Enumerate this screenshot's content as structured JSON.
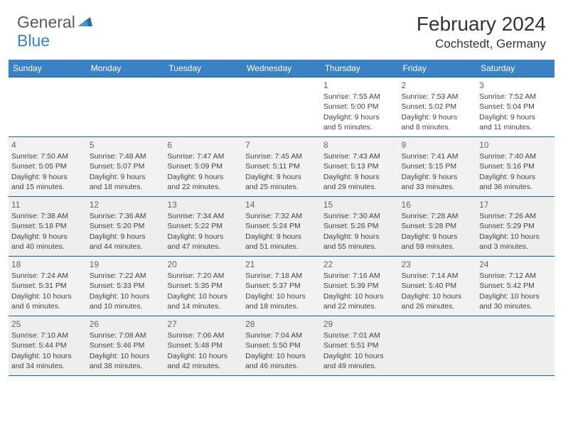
{
  "header": {
    "logo_main": "General",
    "logo_accent": "Blue",
    "logo_colors": {
      "main": "#5a5a5a",
      "accent": "#3b82c4"
    },
    "month_title": "February 2024",
    "location": "Cochstedt, Germany"
  },
  "calendar": {
    "type": "table",
    "header_bg": "#3b82c4",
    "header_fg": "#ffffff",
    "border_color": "#2b5a85",
    "alt_row_bg": "#eeeeee",
    "day_labels": [
      "Sunday",
      "Monday",
      "Tuesday",
      "Wednesday",
      "Thursday",
      "Friday",
      "Saturday"
    ],
    "weeks": [
      [
        null,
        null,
        null,
        null,
        {
          "n": "1",
          "sunrise": "Sunrise: 7:55 AM",
          "sunset": "Sunset: 5:00 PM",
          "d1": "Daylight: 9 hours",
          "d2": "and 5 minutes."
        },
        {
          "n": "2",
          "sunrise": "Sunrise: 7:53 AM",
          "sunset": "Sunset: 5:02 PM",
          "d1": "Daylight: 9 hours",
          "d2": "and 8 minutes."
        },
        {
          "n": "3",
          "sunrise": "Sunrise: 7:52 AM",
          "sunset": "Sunset: 5:04 PM",
          "d1": "Daylight: 9 hours",
          "d2": "and 11 minutes."
        }
      ],
      [
        {
          "n": "4",
          "sunrise": "Sunrise: 7:50 AM",
          "sunset": "Sunset: 5:05 PM",
          "d1": "Daylight: 9 hours",
          "d2": "and 15 minutes."
        },
        {
          "n": "5",
          "sunrise": "Sunrise: 7:48 AM",
          "sunset": "Sunset: 5:07 PM",
          "d1": "Daylight: 9 hours",
          "d2": "and 18 minutes."
        },
        {
          "n": "6",
          "sunrise": "Sunrise: 7:47 AM",
          "sunset": "Sunset: 5:09 PM",
          "d1": "Daylight: 9 hours",
          "d2": "and 22 minutes."
        },
        {
          "n": "7",
          "sunrise": "Sunrise: 7:45 AM",
          "sunset": "Sunset: 5:11 PM",
          "d1": "Daylight: 9 hours",
          "d2": "and 25 minutes."
        },
        {
          "n": "8",
          "sunrise": "Sunrise: 7:43 AM",
          "sunset": "Sunset: 5:13 PM",
          "d1": "Daylight: 9 hours",
          "d2": "and 29 minutes."
        },
        {
          "n": "9",
          "sunrise": "Sunrise: 7:41 AM",
          "sunset": "Sunset: 5:15 PM",
          "d1": "Daylight: 9 hours",
          "d2": "and 33 minutes."
        },
        {
          "n": "10",
          "sunrise": "Sunrise: 7:40 AM",
          "sunset": "Sunset: 5:16 PM",
          "d1": "Daylight: 9 hours",
          "d2": "and 36 minutes."
        }
      ],
      [
        {
          "n": "11",
          "sunrise": "Sunrise: 7:38 AM",
          "sunset": "Sunset: 5:18 PM",
          "d1": "Daylight: 9 hours",
          "d2": "and 40 minutes."
        },
        {
          "n": "12",
          "sunrise": "Sunrise: 7:36 AM",
          "sunset": "Sunset: 5:20 PM",
          "d1": "Daylight: 9 hours",
          "d2": "and 44 minutes."
        },
        {
          "n": "13",
          "sunrise": "Sunrise: 7:34 AM",
          "sunset": "Sunset: 5:22 PM",
          "d1": "Daylight: 9 hours",
          "d2": "and 47 minutes."
        },
        {
          "n": "14",
          "sunrise": "Sunrise: 7:32 AM",
          "sunset": "Sunset: 5:24 PM",
          "d1": "Daylight: 9 hours",
          "d2": "and 51 minutes."
        },
        {
          "n": "15",
          "sunrise": "Sunrise: 7:30 AM",
          "sunset": "Sunset: 5:26 PM",
          "d1": "Daylight: 9 hours",
          "d2": "and 55 minutes."
        },
        {
          "n": "16",
          "sunrise": "Sunrise: 7:28 AM",
          "sunset": "Sunset: 5:28 PM",
          "d1": "Daylight: 9 hours",
          "d2": "and 59 minutes."
        },
        {
          "n": "17",
          "sunrise": "Sunrise: 7:26 AM",
          "sunset": "Sunset: 5:29 PM",
          "d1": "Daylight: 10 hours",
          "d2": "and 3 minutes."
        }
      ],
      [
        {
          "n": "18",
          "sunrise": "Sunrise: 7:24 AM",
          "sunset": "Sunset: 5:31 PM",
          "d1": "Daylight: 10 hours",
          "d2": "and 6 minutes."
        },
        {
          "n": "19",
          "sunrise": "Sunrise: 7:22 AM",
          "sunset": "Sunset: 5:33 PM",
          "d1": "Daylight: 10 hours",
          "d2": "and 10 minutes."
        },
        {
          "n": "20",
          "sunrise": "Sunrise: 7:20 AM",
          "sunset": "Sunset: 5:35 PM",
          "d1": "Daylight: 10 hours",
          "d2": "and 14 minutes."
        },
        {
          "n": "21",
          "sunrise": "Sunrise: 7:18 AM",
          "sunset": "Sunset: 5:37 PM",
          "d1": "Daylight: 10 hours",
          "d2": "and 18 minutes."
        },
        {
          "n": "22",
          "sunrise": "Sunrise: 7:16 AM",
          "sunset": "Sunset: 5:39 PM",
          "d1": "Daylight: 10 hours",
          "d2": "and 22 minutes."
        },
        {
          "n": "23",
          "sunrise": "Sunrise: 7:14 AM",
          "sunset": "Sunset: 5:40 PM",
          "d1": "Daylight: 10 hours",
          "d2": "and 26 minutes."
        },
        {
          "n": "24",
          "sunrise": "Sunrise: 7:12 AM",
          "sunset": "Sunset: 5:42 PM",
          "d1": "Daylight: 10 hours",
          "d2": "and 30 minutes."
        }
      ],
      [
        {
          "n": "25",
          "sunrise": "Sunrise: 7:10 AM",
          "sunset": "Sunset: 5:44 PM",
          "d1": "Daylight: 10 hours",
          "d2": "and 34 minutes."
        },
        {
          "n": "26",
          "sunrise": "Sunrise: 7:08 AM",
          "sunset": "Sunset: 5:46 PM",
          "d1": "Daylight: 10 hours",
          "d2": "and 38 minutes."
        },
        {
          "n": "27",
          "sunrise": "Sunrise: 7:06 AM",
          "sunset": "Sunset: 5:48 PM",
          "d1": "Daylight: 10 hours",
          "d2": "and 42 minutes."
        },
        {
          "n": "28",
          "sunrise": "Sunrise: 7:04 AM",
          "sunset": "Sunset: 5:50 PM",
          "d1": "Daylight: 10 hours",
          "d2": "and 46 minutes."
        },
        {
          "n": "29",
          "sunrise": "Sunrise: 7:01 AM",
          "sunset": "Sunset: 5:51 PM",
          "d1": "Daylight: 10 hours",
          "d2": "and 49 minutes."
        },
        null,
        null
      ]
    ]
  }
}
